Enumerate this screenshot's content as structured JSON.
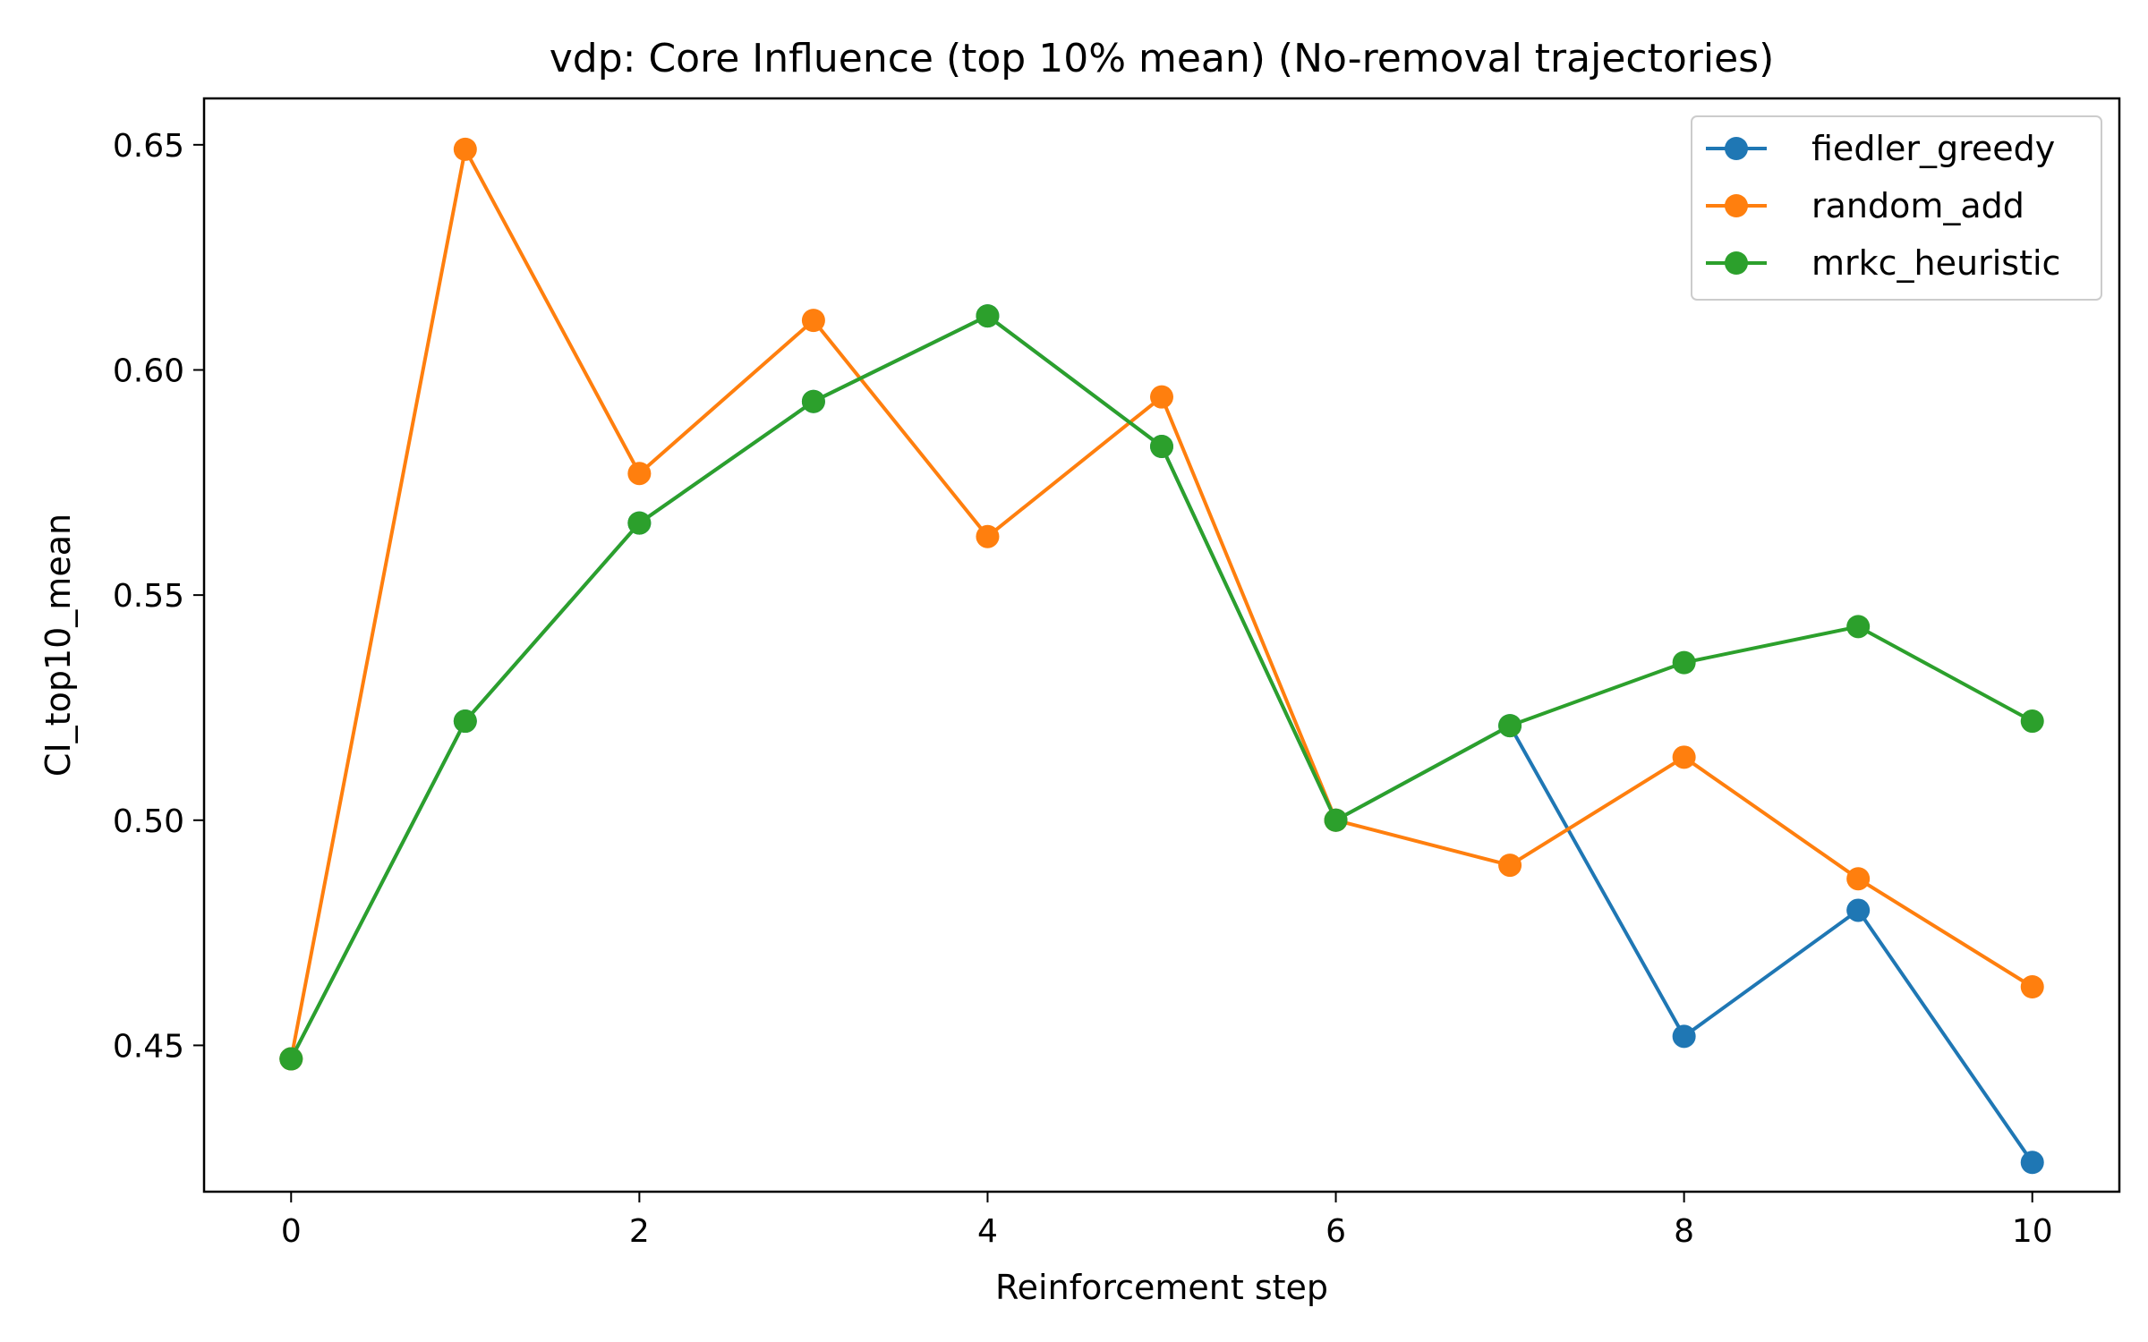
{
  "chart_data": {
    "type": "line",
    "title": "vdp: Core Influence (top 10% mean) (No-removal trajectories)",
    "xlabel": "Reinforcement step",
    "ylabel": "CI_top10_mean",
    "xlim": [
      -0.5,
      10.5
    ],
    "ylim": [
      0.4175,
      0.6603
    ],
    "xticks": [
      0,
      2,
      4,
      6,
      8,
      10
    ],
    "yticks": [
      0.45,
      0.5,
      0.55,
      0.6,
      0.65
    ],
    "ytick_labels": [
      "0.45",
      "0.50",
      "0.55",
      "0.60",
      "0.65"
    ],
    "grid": false,
    "legend_position": "top-right",
    "x": [
      0,
      1,
      2,
      3,
      4,
      5,
      6,
      7,
      8,
      9,
      10
    ],
    "series": [
      {
        "name": "fiedler_greedy",
        "color": "#1f77b4",
        "values": [
          0.447,
          0.522,
          0.566,
          0.593,
          0.612,
          0.583,
          0.5,
          0.521,
          0.452,
          0.48,
          0.424
        ]
      },
      {
        "name": "random_add",
        "color": "#ff7f0e",
        "values": [
          0.447,
          0.649,
          0.577,
          0.611,
          0.563,
          0.594,
          0.5,
          0.49,
          0.514,
          0.487,
          0.463
        ]
      },
      {
        "name": "mrkc_heuristic",
        "color": "#2ca02c",
        "values": [
          0.447,
          0.522,
          0.566,
          0.593,
          0.612,
          0.583,
          0.5,
          0.521,
          0.535,
          0.543,
          0.522
        ]
      }
    ]
  }
}
